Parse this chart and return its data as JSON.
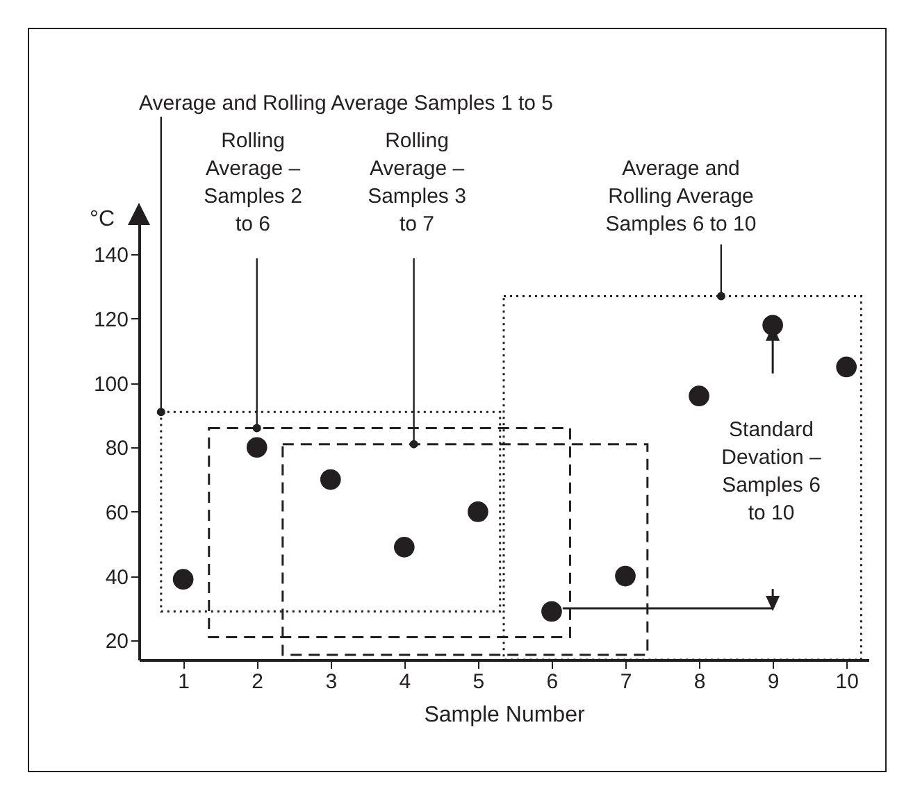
{
  "chart_data": {
    "type": "scatter",
    "xlabel": "Sample Number",
    "ylabel": "°C",
    "x": [
      1,
      2,
      3,
      4,
      5,
      6,
      7,
      8,
      9,
      10
    ],
    "values": [
      39,
      80,
      70,
      49,
      60,
      29,
      40,
      96,
      118,
      105
    ],
    "color": "#231f20",
    "marker": "circle",
    "xlim": [
      0.4,
      10.3
    ],
    "xticks": [
      1,
      2,
      3,
      4,
      5,
      6,
      7,
      8,
      9,
      10
    ],
    "ylim": [
      14,
      150
    ],
    "yticks": [
      20,
      40,
      60,
      80,
      100,
      120,
      140
    ],
    "grid": false,
    "annotations": [
      "Average and Rolling Average Samples 1 to 5",
      "Rolling Average – Samples 2 to 6",
      "Rolling Average – Samples 3 to 7",
      "Average and Rolling Average Samples 6 to 10",
      "Standard Devation – Samples 6 to 10"
    ]
  }
}
